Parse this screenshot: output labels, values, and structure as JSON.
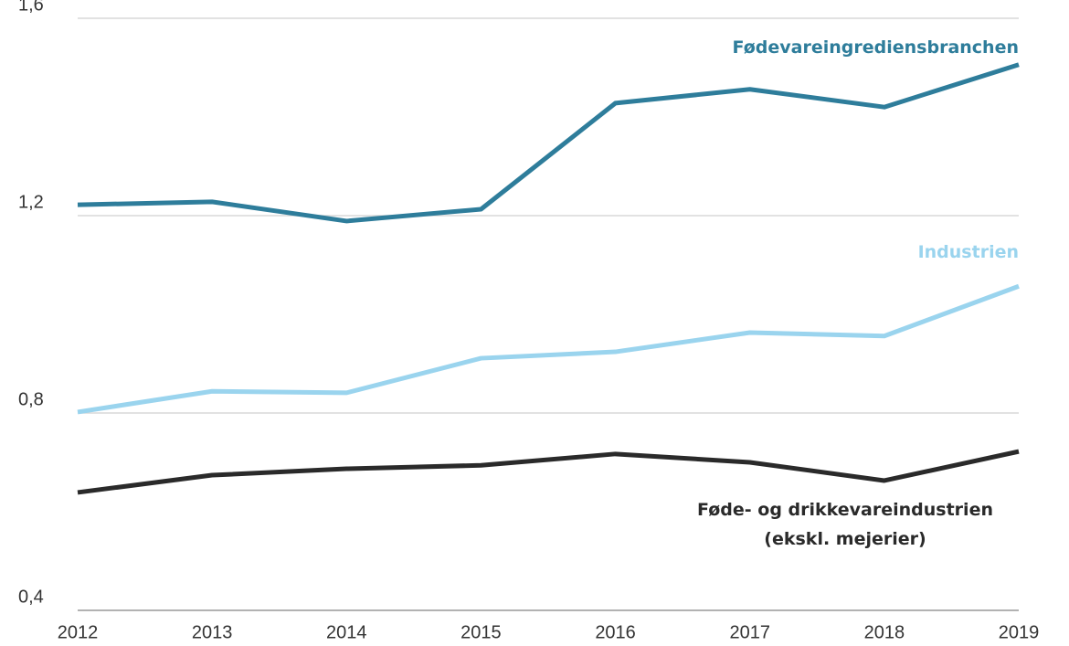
{
  "chart_data": {
    "type": "line",
    "categories": [
      "2012",
      "2013",
      "2014",
      "2015",
      "2016",
      "2017",
      "2018",
      "2019"
    ],
    "series": [
      {
        "name": "Fødevareingrediensbranchen",
        "color": "#2e7d9b",
        "values": [
          1.222,
          1.228,
          1.189,
          1.213,
          1.428,
          1.456,
          1.42,
          1.506
        ]
      },
      {
        "name": "Industrien",
        "color": "#9ad4ee",
        "values": [
          0.802,
          0.844,
          0.841,
          0.911,
          0.924,
          0.963,
          0.956,
          1.057
        ]
      },
      {
        "name": "Føde- og drikkevareindustrien (ekskl. mejerier)",
        "color": "#2a2a2a",
        "values": [
          0.639,
          0.674,
          0.687,
          0.694,
          0.717,
          0.7,
          0.663,
          0.722
        ]
      }
    ],
    "ylim": [
      0.4,
      1.6
    ],
    "yticks": [
      {
        "value": 0.4,
        "label": "0,4"
      },
      {
        "value": 0.8,
        "label": "0,8"
      },
      {
        "value": 1.2,
        "label": "1,2"
      },
      {
        "value": 1.6,
        "label": "1,6"
      }
    ],
    "grid": true
  }
}
